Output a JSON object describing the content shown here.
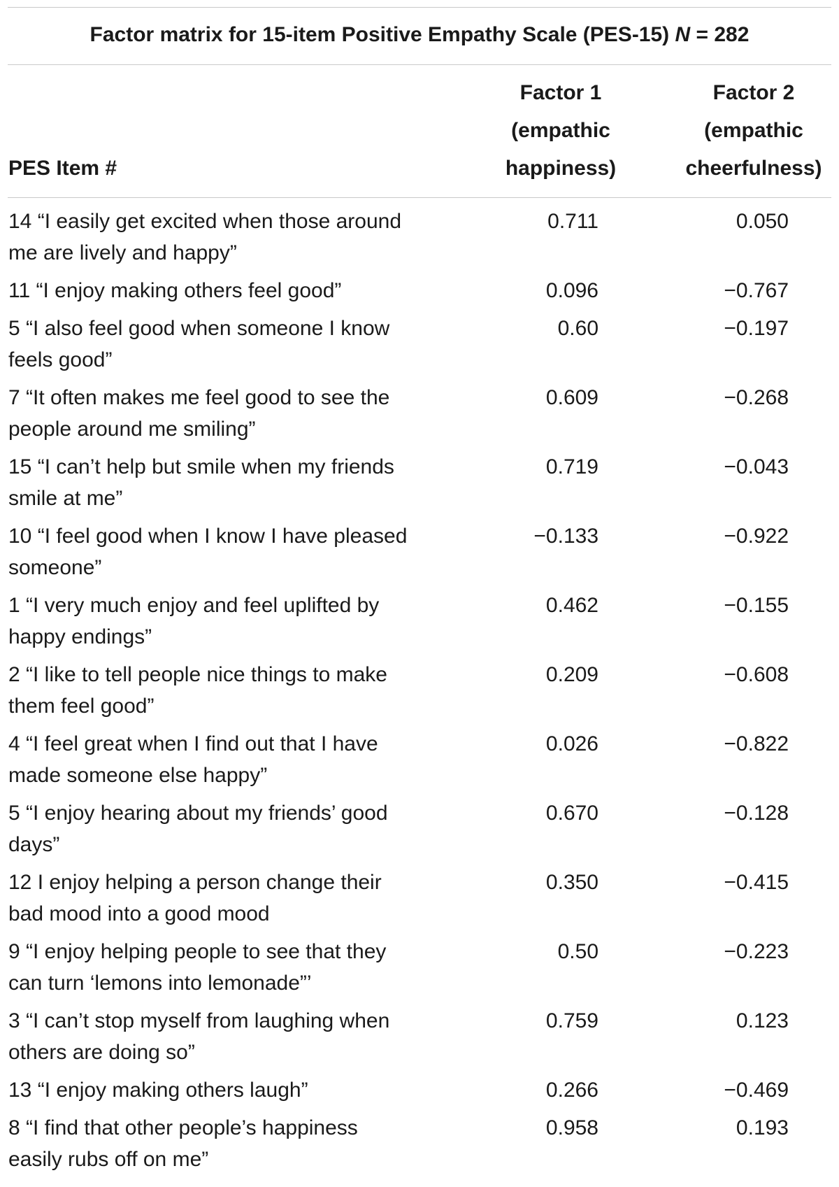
{
  "table": {
    "title": "Factor matrix for 15-item Positive Empathy Scale (PES-15)",
    "title_n_label": "N",
    "title_n_value": " = 282",
    "headers": {
      "item": "PES Item #",
      "factor1_line1": "Factor 1",
      "factor1_line2": "(empathic",
      "factor1_line3": "happiness)",
      "factor2_line1": "Factor 2",
      "factor2_line2": "(empathic",
      "factor2_line3": "cheerfulness)"
    },
    "rows": [
      {
        "item_line1": "14 “I easily get excited when those around",
        "item_line2": "me are lively and happy”",
        "factor1": "0.711",
        "factor2": "0.050"
      },
      {
        "item_line1": "11 “I enjoy making others feel good”",
        "item_line2": "",
        "factor1": "0.096",
        "factor2": "−0.767"
      },
      {
        "item_line1": "5 “I also feel good when someone I know",
        "item_line2": "feels good”",
        "factor1": "0.60",
        "factor2": "−0.197"
      },
      {
        "item_line1": "7 “It often makes me feel good to see the",
        "item_line2": "people around me smiling”",
        "factor1": "0.609",
        "factor2": "−0.268"
      },
      {
        "item_line1": "15 “I can’t help but smile when my friends",
        "item_line2": "smile at me”",
        "factor1": "0.719",
        "factor2": "−0.043"
      },
      {
        "item_line1": "10 “I feel good when I know I have pleased",
        "item_line2": "someone”",
        "factor1": "−0.133",
        "factor2": "−0.922"
      },
      {
        "item_line1": "1 “I very much enjoy and feel uplifted by",
        "item_line2": "happy endings”",
        "factor1": "0.462",
        "factor2": "−0.155"
      },
      {
        "item_line1": "2 “I like to tell people nice things to make",
        "item_line2": "them feel good”",
        "factor1": "0.209",
        "factor2": "−0.608"
      },
      {
        "item_line1": "4 “I feel great when I find out that I have",
        "item_line2": "made someone else happy”",
        "factor1": "0.026",
        "factor2": "−0.822"
      },
      {
        "item_line1": "5 “I enjoy hearing about my friends’ good",
        "item_line2": "days”",
        "factor1": "0.670",
        "factor2": "−0.128"
      },
      {
        "item_line1": "12 I enjoy helping a person change their",
        "item_line2": "bad mood into a good mood",
        "factor1": "0.350",
        "factor2": "−0.415"
      },
      {
        "item_line1": "9 “I enjoy helping people to see that they",
        "item_line2": "can turn ‘lemons into lemonade”’",
        "factor1": "0.50",
        "factor2": "−0.223"
      },
      {
        "item_line1": "3 “I can’t stop myself from laughing when",
        "item_line2": "others are doing so”",
        "factor1": "0.759",
        "factor2": "0.123"
      },
      {
        "item_line1": "13 “I enjoy making others laugh”",
        "item_line2": "",
        "factor1": "0.266",
        "factor2": "−0.469"
      },
      {
        "item_line1": "8 “I find that other people’s happiness",
        "item_line2": "easily rubs off on me”",
        "factor1": "0.958",
        "factor2": "0.193"
      }
    ]
  }
}
